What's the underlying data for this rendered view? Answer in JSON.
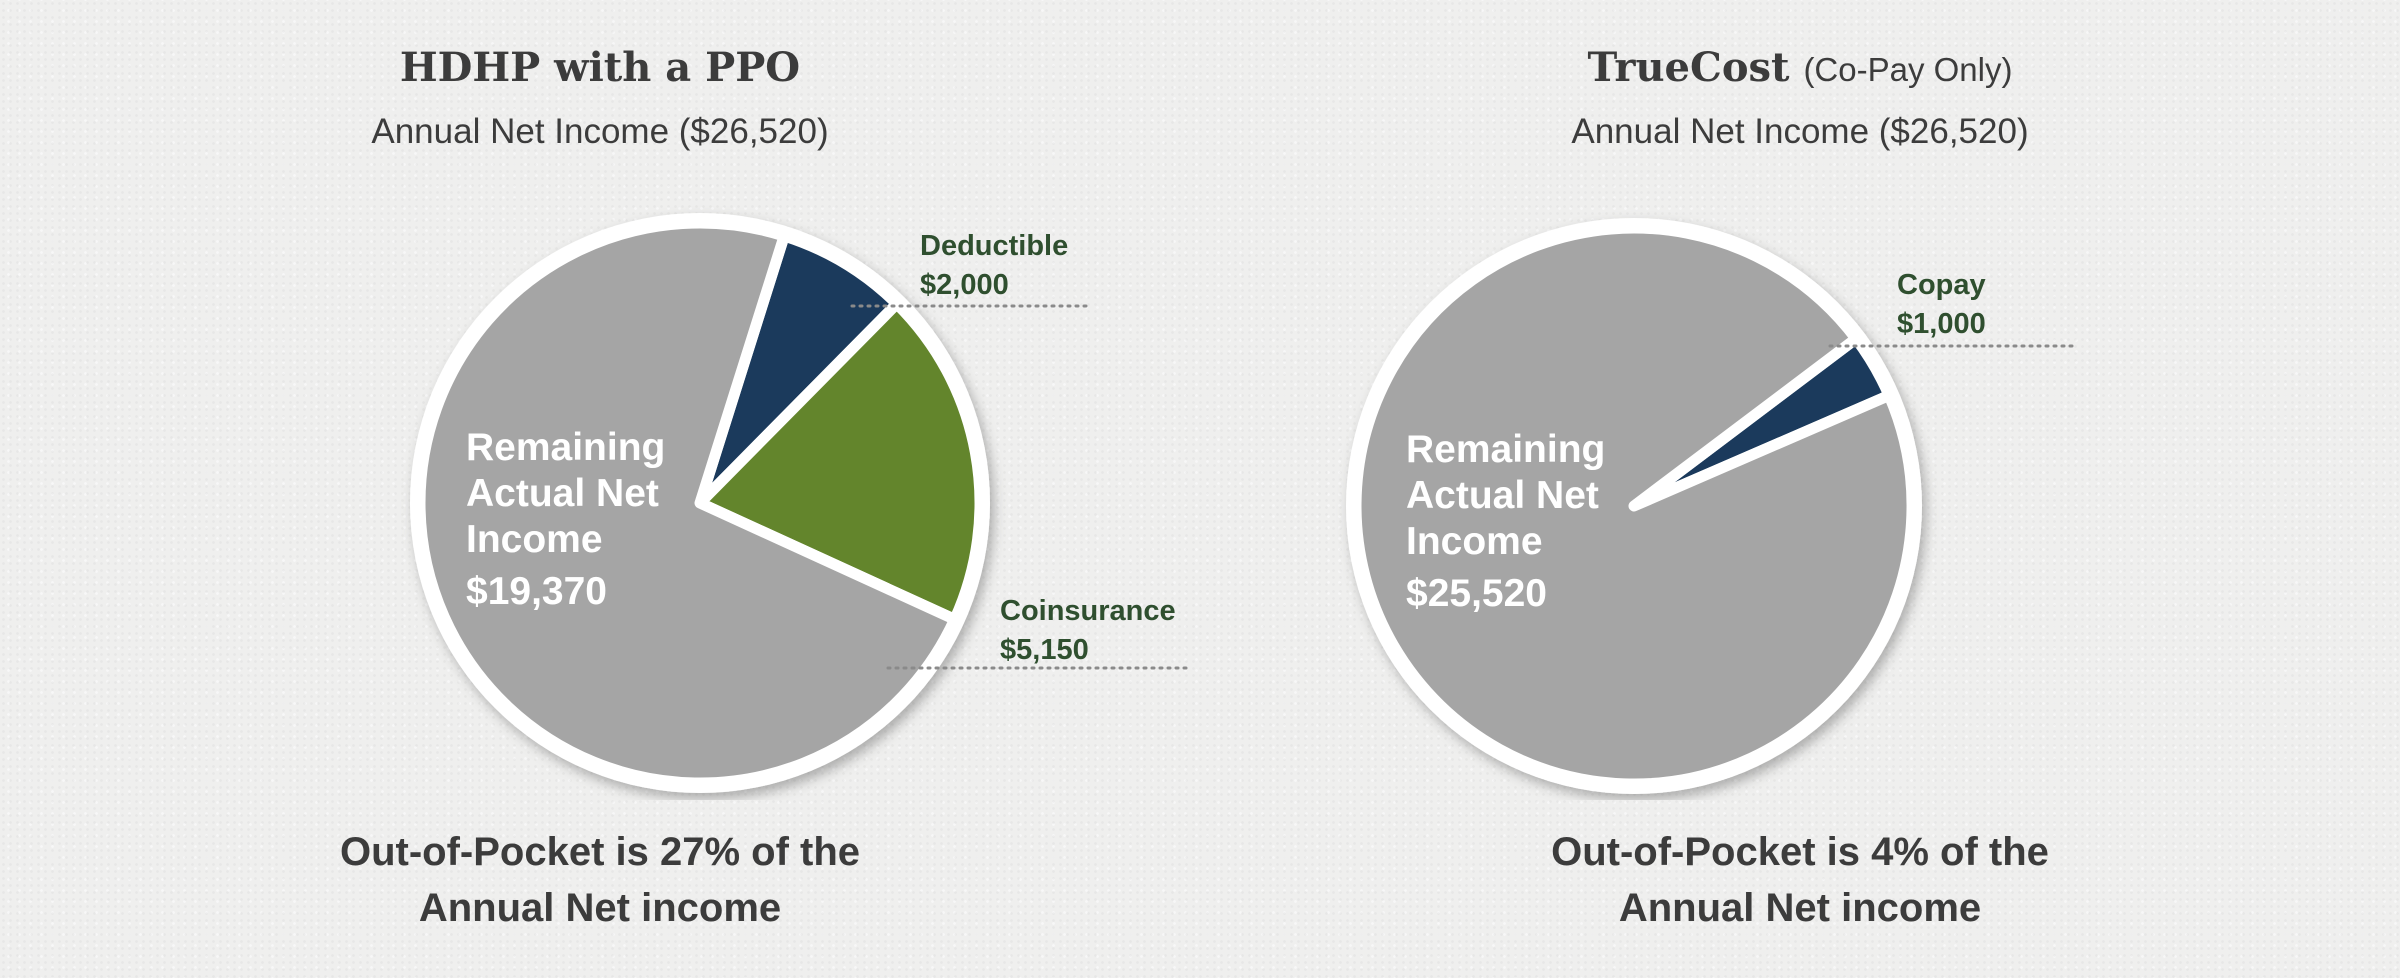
{
  "chart_data": [
    {
      "type": "pie",
      "title_main": "HDHP with a PPO",
      "title_sub": "",
      "subtitle": "Annual Net Income ($26,520)",
      "slices": [
        {
          "label": "Deductible",
          "value_label": "$2,000",
          "value": 2000,
          "color": "#1b3a5c"
        },
        {
          "label": "Coinsurance",
          "value_label": "$5,150",
          "value": 5150,
          "color": "#63852c"
        },
        {
          "label": "Remaining Actual Net Income",
          "value_label": "$19,370",
          "value": 19370,
          "color": "#a5a5a5"
        }
      ],
      "caption_line1": "Out-of-Pocket is 27% of the",
      "caption_line2": "Annual Net income"
    },
    {
      "type": "pie",
      "title_main": "TrueCost",
      "title_sub": "(Co-Pay Only)",
      "subtitle": "Annual Net Income ($26,520)",
      "slices": [
        {
          "label": "Copay",
          "value_label": "$1,000",
          "value": 1000,
          "color": "#1b3a5c"
        },
        {
          "label": "Remaining Actual Net Income",
          "value_label": "$25,520",
          "value": 25520,
          "color": "#a5a5a5"
        }
      ],
      "caption_line1": "Out-of-Pocket is 4% of the",
      "caption_line2": "Annual Net income"
    }
  ]
}
